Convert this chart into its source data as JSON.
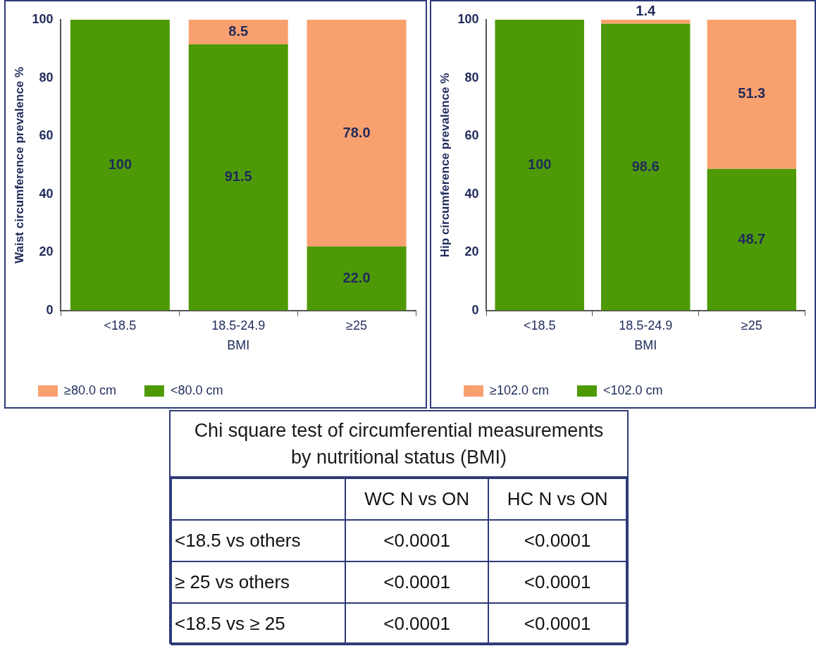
{
  "chart_data": [
    {
      "type": "bar",
      "stacked": true,
      "categories": [
        "<18.5",
        "18.5-24.9",
        "≥25"
      ],
      "xlabel": "BMI",
      "ylabel": "Waist circumference prevalence %",
      "ylim": [
        0,
        100
      ],
      "yticks": [
        0,
        20,
        40,
        60,
        80,
        100
      ],
      "grid": false,
      "legend": "bottom",
      "series": [
        {
          "name": "<80.0 cm",
          "color": "#4e9a06",
          "values": [
            100,
            91.5,
            22.0
          ],
          "value_labels": [
            "100",
            "91.5",
            "22.0"
          ]
        },
        {
          "name": "≥80.0 cm",
          "color": "#f9a06f",
          "values": [
            0,
            8.5,
            78.0
          ],
          "value_labels": [
            null,
            "8.5",
            "78.0"
          ]
        }
      ]
    },
    {
      "type": "bar",
      "stacked": true,
      "categories": [
        "<18.5",
        "18.5-24.9",
        "≥25"
      ],
      "xlabel": "BMI",
      "ylabel": "Hip circumference prevalence %",
      "ylim": [
        0,
        100
      ],
      "yticks": [
        0,
        20,
        40,
        60,
        80,
        100
      ],
      "grid": false,
      "legend": "bottom",
      "series": [
        {
          "name": "<102.0 cm",
          "color": "#4e9a06",
          "values": [
            100,
            98.6,
            48.7
          ],
          "value_labels": [
            "100",
            "98.6",
            "48.7"
          ]
        },
        {
          "name": "≥102.0 cm",
          "color": "#f9a06f",
          "values": [
            0,
            1.4,
            51.3
          ],
          "value_labels": [
            null,
            "1.4",
            "51.3"
          ]
        }
      ]
    },
    {
      "type": "other",
      "title": "Chi square test of circumferential measurements by nutritional status (BMI)",
      "annotations": [
        "WC N vs ON",
        "HC N vs ON",
        "<18.5 vs others",
        "<0.0001",
        "<0.0001",
        "≥ 25 vs others",
        "<0.0001",
        "<0.0001",
        "<18.5 vs ≥ 25",
        "<0.0001",
        "<0.0001"
      ]
    }
  ]
}
